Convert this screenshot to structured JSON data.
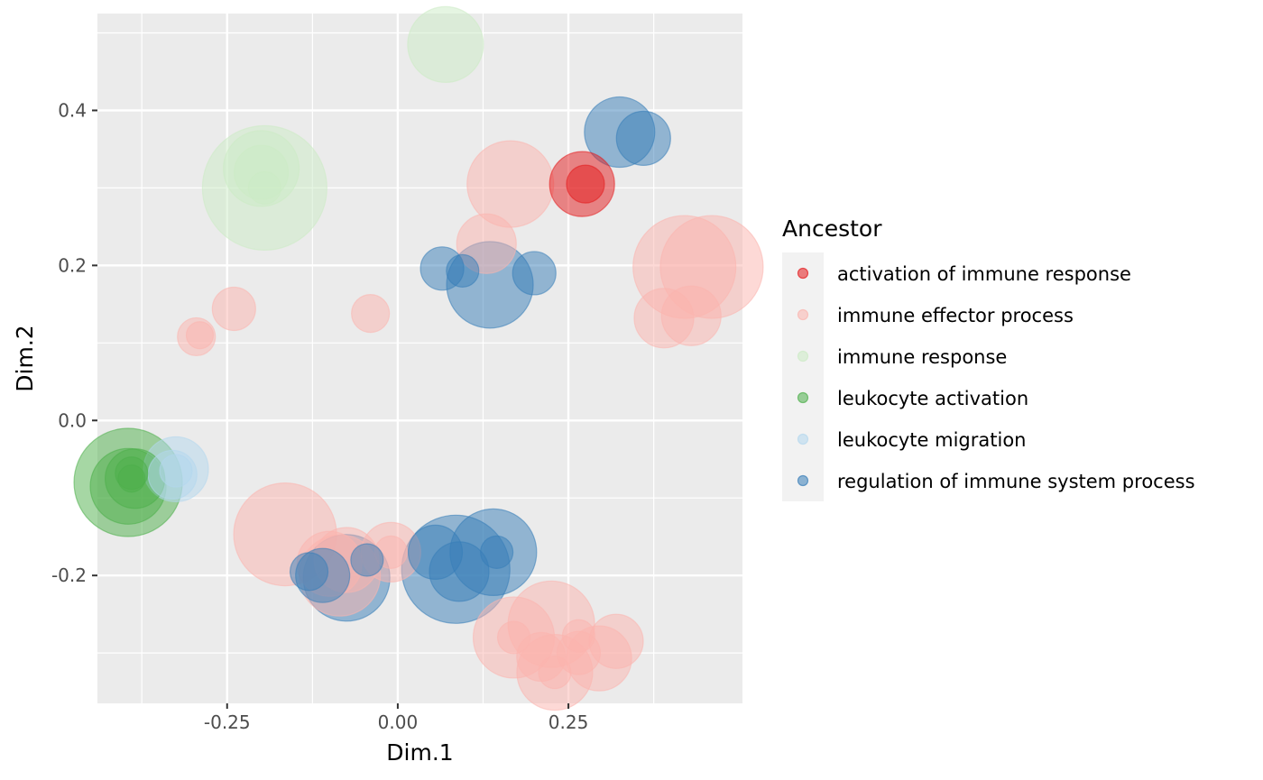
{
  "chart_data": {
    "type": "scatter",
    "xlabel": "Dim.1",
    "ylabel": "Dim.2",
    "xlim": [
      -0.44,
      0.505
    ],
    "ylim": [
      -0.365,
      0.525
    ],
    "x_ticks": [
      -0.25,
      0.0,
      0.25
    ],
    "x_tick_labels": [
      "-0.25",
      "0.00",
      "0.25"
    ],
    "y_ticks": [
      -0.2,
      0.0,
      0.2,
      0.4
    ],
    "y_tick_labels": [
      "-0.2",
      "0.0",
      "0.2",
      "0.4"
    ],
    "grid": true,
    "legend": {
      "title": "Ancestor",
      "position": "right",
      "entries": [
        {
          "label": "activation of immune response",
          "color": "#E41A1C"
        },
        {
          "label": "immune effector process",
          "color": "#FBB4AE"
        },
        {
          "label": "immune response",
          "color": "#CCEBC5"
        },
        {
          "label": "leukocyte activation",
          "color": "#4DAF4A"
        },
        {
          "label": "leukocyte migration",
          "color": "#B3D7EE"
        },
        {
          "label": "regulation of immune system process",
          "color": "#377EB8"
        }
      ]
    },
    "series": [
      {
        "name": "activation of immune response",
        "points": [
          {
            "x": 0.27,
            "y": 0.305,
            "size": 1.2
          },
          {
            "x": 0.275,
            "y": 0.305,
            "size": 0.7
          }
        ]
      },
      {
        "name": "immune effector process",
        "points": [
          {
            "x": 0.165,
            "y": 0.305,
            "size": 1.6
          },
          {
            "x": 0.13,
            "y": 0.228,
            "size": 1.1
          },
          {
            "x": 0.42,
            "y": 0.198,
            "size": 1.9
          },
          {
            "x": 0.46,
            "y": 0.198,
            "size": 1.9
          },
          {
            "x": 0.39,
            "y": 0.132,
            "size": 1.1
          },
          {
            "x": 0.43,
            "y": 0.135,
            "size": 1.1
          },
          {
            "x": -0.24,
            "y": 0.144,
            "size": 0.8
          },
          {
            "x": -0.04,
            "y": 0.138,
            "size": 0.7
          },
          {
            "x": -0.295,
            "y": 0.108,
            "size": 0.7
          },
          {
            "x": -0.29,
            "y": 0.11,
            "size": 0.5
          },
          {
            "x": -0.165,
            "y": -0.147,
            "size": 1.9
          },
          {
            "x": -0.1,
            "y": -0.185,
            "size": 1.2
          },
          {
            "x": -0.085,
            "y": -0.2,
            "size": 1.5
          },
          {
            "x": -0.075,
            "y": -0.18,
            "size": 1.2
          },
          {
            "x": -0.01,
            "y": -0.17,
            "size": 1.1
          },
          {
            "x": -0.01,
            "y": -0.17,
            "size": 0.6
          },
          {
            "x": 0.17,
            "y": -0.28,
            "size": 1.5
          },
          {
            "x": 0.17,
            "y": -0.28,
            "size": 0.6
          },
          {
            "x": 0.225,
            "y": -0.263,
            "size": 1.6
          },
          {
            "x": 0.21,
            "y": -0.305,
            "size": 0.9
          },
          {
            "x": 0.23,
            "y": -0.325,
            "size": 1.4
          },
          {
            "x": 0.23,
            "y": -0.325,
            "size": 0.6
          },
          {
            "x": 0.265,
            "y": -0.278,
            "size": 0.6
          },
          {
            "x": 0.265,
            "y": -0.3,
            "size": 0.8
          },
          {
            "x": 0.295,
            "y": -0.307,
            "size": 1.2
          },
          {
            "x": 0.32,
            "y": -0.285,
            "size": 1.0
          }
        ]
      },
      {
        "name": "immune response",
        "points": [
          {
            "x": 0.07,
            "y": 0.485,
            "size": 1.4
          },
          {
            "x": -0.2,
            "y": 0.325,
            "size": 1.4
          },
          {
            "x": -0.2,
            "y": 0.32,
            "size": 1.0
          },
          {
            "x": -0.195,
            "y": 0.3,
            "size": 2.3
          },
          {
            "x": -0.195,
            "y": 0.3,
            "size": 0.6
          }
        ]
      },
      {
        "name": "leukocyte activation",
        "points": [
          {
            "x": -0.395,
            "y": -0.08,
            "size": 2.0
          },
          {
            "x": -0.395,
            "y": -0.085,
            "size": 1.4
          },
          {
            "x": -0.385,
            "y": -0.075,
            "size": 1.1
          },
          {
            "x": -0.39,
            "y": -0.068,
            "size": 0.6
          },
          {
            "x": -0.39,
            "y": -0.075,
            "size": 0.5
          }
        ]
      },
      {
        "name": "leukocyte migration",
        "points": [
          {
            "x": -0.325,
            "y": -0.063,
            "size": 1.2
          },
          {
            "x": -0.33,
            "y": -0.07,
            "size": 0.9
          },
          {
            "x": -0.325,
            "y": -0.065,
            "size": 0.6
          }
        ]
      },
      {
        "name": "regulation of immune system process",
        "points": [
          {
            "x": 0.325,
            "y": 0.372,
            "size": 1.3
          },
          {
            "x": 0.36,
            "y": 0.364,
            "size": 1.0
          },
          {
            "x": 0.065,
            "y": 0.196,
            "size": 0.8
          },
          {
            "x": 0.095,
            "y": 0.193,
            "size": 0.6
          },
          {
            "x": 0.135,
            "y": 0.175,
            "size": 1.6
          },
          {
            "x": 0.2,
            "y": 0.19,
            "size": 0.8
          },
          {
            "x": -0.13,
            "y": -0.195,
            "size": 0.7
          },
          {
            "x": -0.11,
            "y": -0.2,
            "size": 1.0
          },
          {
            "x": -0.075,
            "y": -0.203,
            "size": 1.6
          },
          {
            "x": -0.045,
            "y": -0.18,
            "size": 0.6
          },
          {
            "x": 0.055,
            "y": -0.17,
            "size": 1.0
          },
          {
            "x": 0.085,
            "y": -0.192,
            "size": 2.0
          },
          {
            "x": 0.09,
            "y": -0.195,
            "size": 1.1
          },
          {
            "x": 0.14,
            "y": -0.17,
            "size": 1.6
          },
          {
            "x": 0.145,
            "y": -0.17,
            "size": 0.6
          }
        ]
      }
    ]
  }
}
